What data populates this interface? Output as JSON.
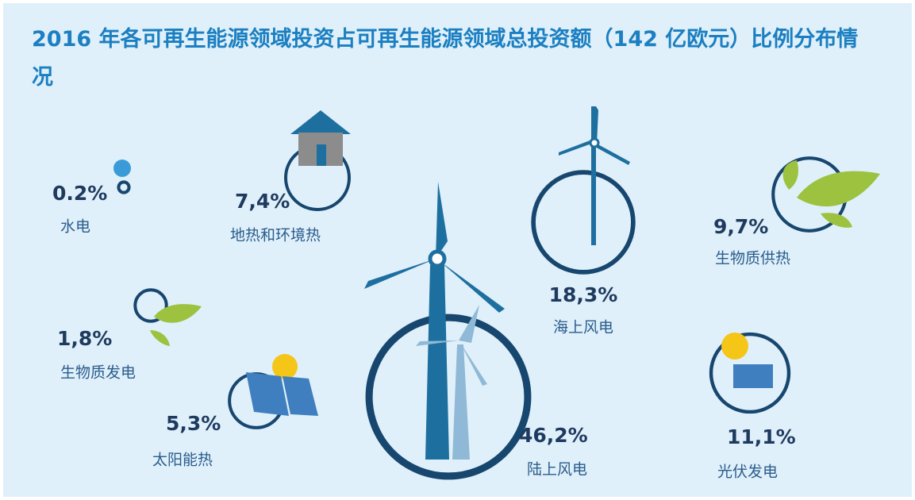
{
  "chart_data": {
    "type": "bubble",
    "title": "2016 年各可再生能源领域投资占可再生能源领域总投资额（142 亿欧元）比例分布情况",
    "categories": [
      "水电",
      "地热和环境热",
      "海上风电",
      "生物质供热",
      "生物质发电",
      "太阳能热",
      "陆上风电",
      "光伏发电"
    ],
    "values": [
      0.2,
      7.4,
      18.3,
      9.7,
      1.8,
      5.3,
      46.2,
      11.1
    ],
    "value_labels": [
      "0.2%",
      "7,4%",
      "18,3%",
      "9,7%",
      "1,8%",
      "5,3%",
      "46,2%",
      "11,1%"
    ],
    "color": "#17466e"
  }
}
